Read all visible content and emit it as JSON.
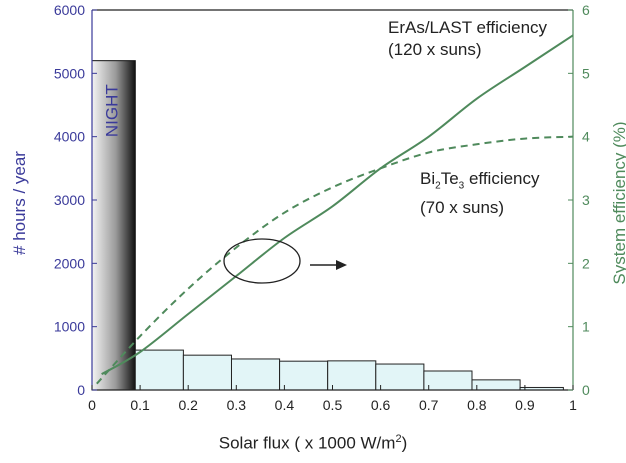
{
  "chart_data": {
    "type": "bar",
    "xlabel_prefix": "Solar flux ( x 1000 W/m",
    "xlabel_sup": "2",
    "xlabel_suffix": ")",
    "ylabel_left": "# hours / year",
    "ylabel_right": "System efficiency (%)",
    "xlim": [
      0,
      1
    ],
    "ylim_left": [
      0,
      6000
    ],
    "ylim_right": [
      0,
      6
    ],
    "x_ticks": [
      "0",
      "0.1",
      "0.2",
      "0.3",
      "0.4",
      "0.5",
      "0.6",
      "0.7",
      "0.8",
      "0.9",
      "1"
    ],
    "y_left_ticks": [
      "0",
      "1000",
      "2000",
      "3000",
      "4000",
      "5000",
      "6000"
    ],
    "y_right_ticks": [
      "0",
      "1",
      "2",
      "3",
      "4",
      "5",
      "6"
    ],
    "night_bar": {
      "label": "NIGHT",
      "x0": 0,
      "x1": 0.09,
      "value": 5200
    },
    "histogram": {
      "bin_edges": [
        0.09,
        0.19,
        0.29,
        0.39,
        0.49,
        0.59,
        0.69,
        0.79,
        0.89,
        0.98
      ],
      "values": [
        630,
        550,
        490,
        455,
        460,
        410,
        300,
        160,
        40
      ]
    },
    "series": [
      {
        "name": "ErAs/LAST efficiency",
        "style": "solid",
        "x": [
          0.02,
          0.1,
          0.2,
          0.3,
          0.4,
          0.5,
          0.6,
          0.7,
          0.8,
          0.9,
          1.0
        ],
        "y": [
          0.25,
          0.6,
          1.2,
          1.8,
          2.4,
          2.9,
          3.5,
          4.0,
          4.6,
          5.1,
          5.6
        ]
      },
      {
        "name": "Bi2Te3 efficiency",
        "style": "dashed",
        "x": [
          0.01,
          0.1,
          0.2,
          0.3,
          0.4,
          0.5,
          0.6,
          0.7,
          0.8,
          0.9,
          1.0
        ],
        "y": [
          0.1,
          0.85,
          1.6,
          2.25,
          2.8,
          3.2,
          3.5,
          3.75,
          3.88,
          3.97,
          4.0
        ]
      }
    ],
    "annotations": {
      "eras_line1": "ErAs/LAST efficiency",
      "eras_line2": "(120 x suns)",
      "bite_bi": "Bi",
      "bite_sub1": "2",
      "bite_te": "Te",
      "bite_sub2": "3",
      "bite_rest": " efficiency",
      "bite_line2": "(70 x suns)"
    },
    "colors": {
      "left_axis": "#3a3a9a",
      "right_axis": "#4f8a5c",
      "bars_fill": "#e2f5f7",
      "bars_edge": "#222222",
      "lines": "#4f8a5c"
    }
  }
}
